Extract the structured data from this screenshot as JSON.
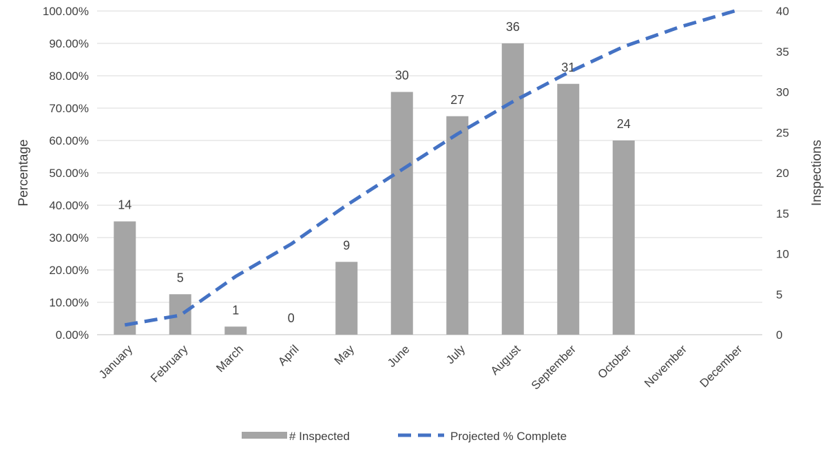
{
  "chart_data": {
    "type": "bar",
    "categories": [
      "January",
      "February",
      "March",
      "April",
      "May",
      "June",
      "July",
      "August",
      "September",
      "October",
      "November",
      "December"
    ],
    "series": [
      {
        "name": "# Inspected",
        "type": "bar",
        "axis": "right",
        "values": [
          14,
          5,
          1,
          0,
          9,
          30,
          27,
          36,
          31,
          24,
          null,
          null
        ],
        "data_labels": [
          "14",
          "5",
          "1",
          "0",
          "9",
          "30",
          "27",
          "36",
          "31",
          "24",
          "",
          ""
        ],
        "color": "#a5a5a5"
      },
      {
        "name": "Projected % Complete",
        "type": "line",
        "style": "dashed",
        "axis": "left",
        "values": [
          0.03,
          0.06,
          0.18,
          0.28,
          0.4,
          0.51,
          0.62,
          0.72,
          0.81,
          0.89,
          0.95,
          1.0
        ],
        "color": "#4472c4"
      }
    ],
    "y_left": {
      "label": "Percentage",
      "ylim": [
        0,
        1
      ],
      "ticks": [
        0,
        0.1,
        0.2,
        0.3,
        0.4,
        0.5,
        0.6,
        0.7,
        0.8,
        0.9,
        1.0
      ],
      "tick_labels": [
        "0.00%",
        "10.00%",
        "20.00%",
        "30.00%",
        "40.00%",
        "50.00%",
        "60.00%",
        "70.00%",
        "80.00%",
        "90.00%",
        "100.00%"
      ]
    },
    "y_right": {
      "label": "Inspections",
      "ylim": [
        0,
        40
      ],
      "ticks": [
        0,
        5,
        10,
        15,
        20,
        25,
        30,
        35,
        40
      ],
      "tick_labels": [
        "0",
        "5",
        "10",
        "15",
        "20",
        "25",
        "30",
        "35",
        "40"
      ]
    },
    "grid": true,
    "legend": {
      "placement": "bottom",
      "entries": [
        "# Inspected",
        "Projected % Complete"
      ]
    }
  }
}
